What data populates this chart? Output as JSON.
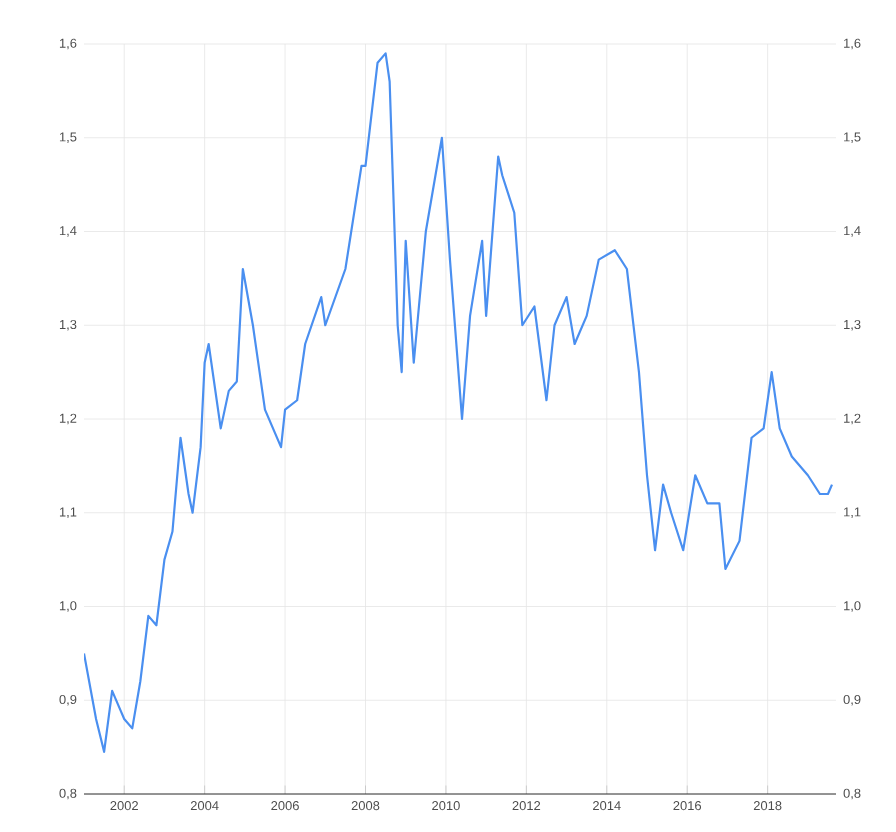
{
  "chart_data": {
    "type": "line",
    "x": [
      2001.0,
      2001.3,
      2001.5,
      2001.7,
      2001.9,
      2002.0,
      2002.2,
      2002.4,
      2002.6,
      2002.8,
      2003.0,
      2003.2,
      2003.4,
      2003.6,
      2003.7,
      2003.9,
      2004.0,
      2004.1,
      2004.4,
      2004.6,
      2004.8,
      2004.95,
      2005.2,
      2005.5,
      2005.9,
      2006.0,
      2006.3,
      2006.5,
      2006.9,
      2007.0,
      2007.5,
      2007.9,
      2008.0,
      2008.3,
      2008.5,
      2008.6,
      2008.8,
      2008.9,
      2009.0,
      2009.2,
      2009.5,
      2009.9,
      2010.1,
      2010.4,
      2010.6,
      2010.9,
      2011.0,
      2011.3,
      2011.4,
      2011.7,
      2011.9,
      2012.2,
      2012.5,
      2012.7,
      2013.0,
      2013.2,
      2013.5,
      2013.8,
      2014.2,
      2014.5,
      2014.8,
      2015.0,
      2015.2,
      2015.4,
      2015.6,
      2015.9,
      2016.2,
      2016.5,
      2016.8,
      2016.95,
      2017.3,
      2017.6,
      2017.9,
      2018.1,
      2018.3,
      2018.6,
      2019.0,
      2019.3,
      2019.5,
      2019.6
    ],
    "series": [
      {
        "color": "#4a8ff0",
        "values": [
          0.95,
          0.88,
          0.845,
          0.91,
          0.89,
          0.88,
          0.87,
          0.92,
          0.99,
          0.98,
          1.05,
          1.08,
          1.18,
          1.12,
          1.1,
          1.17,
          1.26,
          1.28,
          1.19,
          1.23,
          1.24,
          1.36,
          1.3,
          1.21,
          1.17,
          1.21,
          1.22,
          1.28,
          1.33,
          1.3,
          1.36,
          1.47,
          1.47,
          1.58,
          1.59,
          1.56,
          1.3,
          1.25,
          1.39,
          1.26,
          1.4,
          1.5,
          1.37,
          1.2,
          1.31,
          1.39,
          1.31,
          1.48,
          1.46,
          1.42,
          1.3,
          1.32,
          1.22,
          1.3,
          1.33,
          1.28,
          1.31,
          1.37,
          1.38,
          1.36,
          1.25,
          1.14,
          1.06,
          1.13,
          1.1,
          1.06,
          1.14,
          1.11,
          1.11,
          1.04,
          1.07,
          1.18,
          1.19,
          1.25,
          1.19,
          1.16,
          1.14,
          1.12,
          1.12,
          1.13
        ]
      }
    ],
    "xlim": [
      2001.0,
      2019.7
    ],
    "xticks": [
      2002,
      2004,
      2006,
      2008,
      2010,
      2012,
      2014,
      2016,
      2018
    ],
    "ylim": [
      0.8,
      1.6
    ],
    "yticks": [
      {
        "value": 0.8,
        "label": "0,8"
      },
      {
        "value": 0.9,
        "label": "0,9"
      },
      {
        "value": 1.0,
        "label": "1,0"
      },
      {
        "value": 1.1,
        "label": "1,1"
      },
      {
        "value": 1.2,
        "label": "1,2"
      },
      {
        "value": 1.3,
        "label": "1,3"
      },
      {
        "value": 1.4,
        "label": "1,4"
      },
      {
        "value": 1.5,
        "label": "1,5"
      },
      {
        "value": 1.6,
        "label": "1,6"
      }
    ],
    "y2lim": [
      0.8,
      1.6
    ],
    "y2ticks": [
      {
        "value": 0.8,
        "label": "0,8"
      },
      {
        "value": 0.9,
        "label": "0,9"
      },
      {
        "value": 1.0,
        "label": "1,0"
      },
      {
        "value": 1.1,
        "label": "1,1"
      },
      {
        "value": 1.2,
        "label": "1,2"
      },
      {
        "value": 1.3,
        "label": "1,3"
      },
      {
        "value": 1.4,
        "label": "1,4"
      },
      {
        "value": 1.5,
        "label": "1,5"
      },
      {
        "value": 1.6,
        "label": "1,6"
      }
    ],
    "grid": true
  }
}
